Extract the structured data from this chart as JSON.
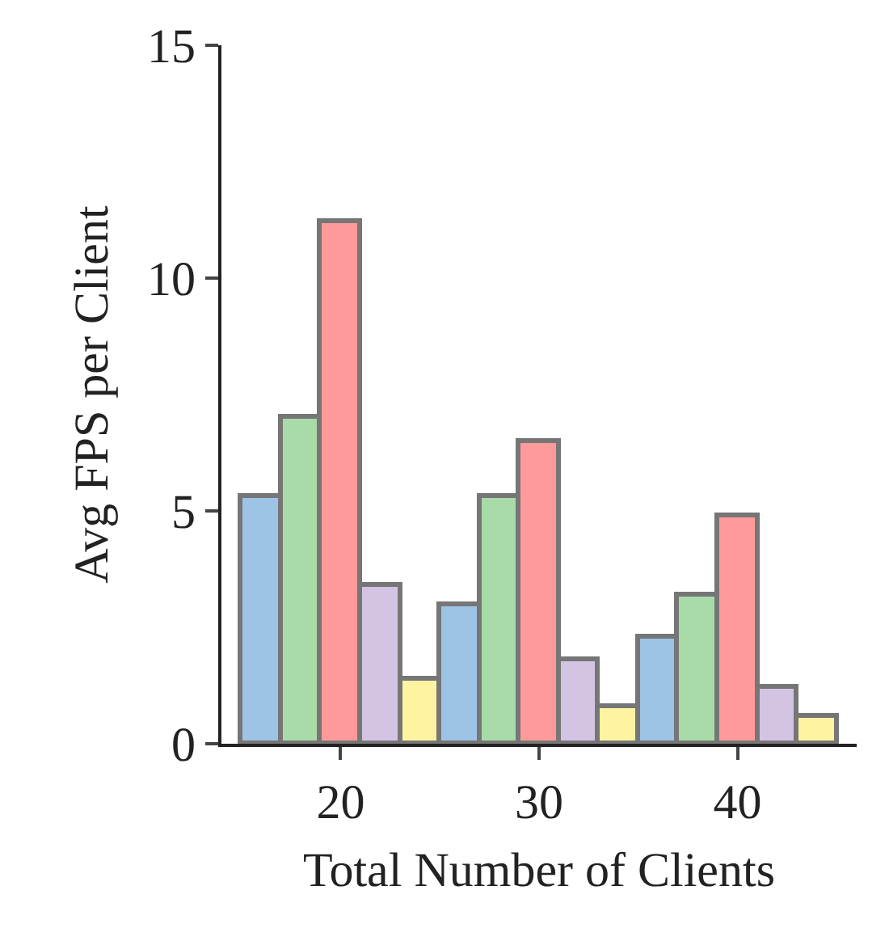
{
  "chart_data": {
    "type": "bar",
    "xlabel": "Total Number of Clients",
    "ylabel": "Avg FPS per Client",
    "categories": [
      "20",
      "30",
      "40"
    ],
    "series": [
      {
        "color": "#9dc3e6",
        "values": [
          5.3,
          3.0,
          2.3
        ]
      },
      {
        "color": "#a8dba8",
        "values": [
          7.0,
          5.3,
          3.2
        ]
      },
      {
        "color": "#ff9a9a",
        "values": [
          11.2,
          6.5,
          4.9
        ]
      },
      {
        "color": "#d4c4e4",
        "values": [
          3.4,
          1.8,
          1.2
        ]
      },
      {
        "color": "#fdf3a0",
        "values": [
          1.4,
          0.8,
          0.6
        ]
      }
    ],
    "ylim": [
      0,
      15
    ],
    "yticks": [
      0,
      5,
      10,
      15
    ]
  }
}
